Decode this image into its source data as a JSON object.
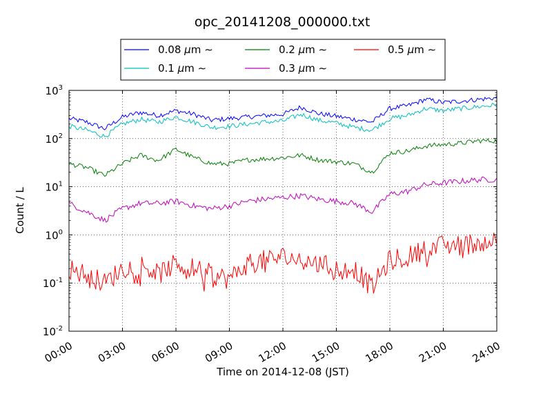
{
  "chart_data": {
    "type": "line",
    "title": "opc_20141208_000000.txt",
    "xlabel": "Time on 2014-12-08 (JST)",
    "ylabel": "Count / L",
    "yscale": "log",
    "xlim": [
      0,
      24
    ],
    "ylim": [
      0.01,
      1000
    ],
    "x_tick_labels": [
      "00:00",
      "03:00",
      "06:00",
      "09:00",
      "12:00",
      "15:00",
      "18:00",
      "21:00",
      "24:00"
    ],
    "y_tick_labels": [
      {
        "base": "10",
        "exp": "-2"
      },
      {
        "base": "10",
        "exp": "-1"
      },
      {
        "base": "10",
        "exp": "0"
      },
      {
        "base": "10",
        "exp": "1"
      },
      {
        "base": "10",
        "exp": "2"
      },
      {
        "base": "10",
        "exp": "3"
      }
    ],
    "grid": true,
    "legend_position": "top-center, outside plot",
    "x": [
      0,
      1,
      2,
      3,
      4,
      5,
      6,
      7,
      8,
      9,
      10,
      11,
      12,
      13,
      14,
      15,
      16,
      17,
      18,
      19,
      20,
      21,
      22,
      23,
      24
    ],
    "series": [
      {
        "name": "0.08 μm ∼",
        "label_text": "0.08 ",
        "color": "#0000ff",
        "values": [
          260,
          220,
          160,
          280,
          350,
          300,
          380,
          320,
          240,
          260,
          280,
          300,
          320,
          450,
          330,
          290,
          250,
          220,
          420,
          480,
          650,
          560,
          600,
          650,
          700
        ]
      },
      {
        "name": "0.1 μm ∼",
        "label_text": "0.1 ",
        "color": "#00bfbf",
        "values": [
          180,
          150,
          110,
          200,
          250,
          220,
          280,
          220,
          170,
          180,
          200,
          220,
          230,
          320,
          240,
          210,
          170,
          150,
          260,
          300,
          420,
          380,
          420,
          460,
          500
        ]
      },
      {
        "name": "0.2 μm ∼",
        "label_text": "0.2 ",
        "color": "#007f00",
        "values": [
          30,
          25,
          17,
          30,
          45,
          35,
          60,
          40,
          30,
          30,
          36,
          38,
          40,
          45,
          36,
          33,
          30,
          20,
          50,
          55,
          70,
          75,
          80,
          90,
          90
        ]
      },
      {
        "name": "0.3 μm ∼",
        "label_text": "0.3 ",
        "color": "#bf00bf",
        "values": [
          4.5,
          3.0,
          2.0,
          3.5,
          4.5,
          4.5,
          5.0,
          4.0,
          3.5,
          4.0,
          5.0,
          5.5,
          6.0,
          6.5,
          5.5,
          5.0,
          4.5,
          3.0,
          7.0,
          8.0,
          11,
          12,
          13,
          14,
          14
        ]
      },
      {
        "name": "0.5 μm ∼",
        "label_text": "0.5 ",
        "color": "#ff0000",
        "values": [
          0.2,
          0.15,
          0.1,
          0.2,
          0.25,
          0.15,
          0.25,
          0.2,
          0.15,
          0.12,
          0.25,
          0.3,
          0.35,
          0.3,
          0.25,
          0.2,
          0.2,
          0.08,
          0.3,
          0.35,
          0.5,
          0.6,
          0.6,
          0.7,
          0.8
        ]
      }
    ]
  }
}
